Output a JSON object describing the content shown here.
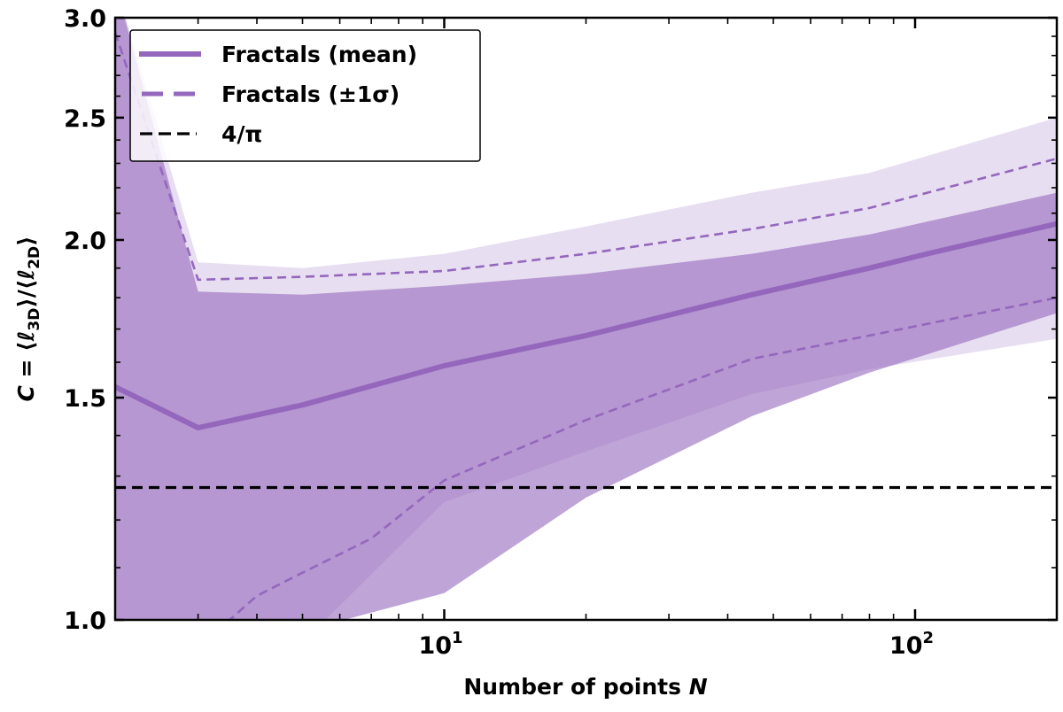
{
  "chart_data": {
    "type": "line",
    "title": "",
    "xlabel": "Number of points N",
    "ylabel": "C = ⟨ℓ3D⟩/⟨ℓ2D⟩",
    "xscale": "log",
    "yscale": "log",
    "xlim": [
      2,
      200
    ],
    "ylim": [
      1.0,
      3.0
    ],
    "grid": false,
    "legend_position": "upper left",
    "x_ticks": [
      {
        "value": 10,
        "label_base": "10",
        "label_exp": "1"
      },
      {
        "value": 100,
        "label_base": "10",
        "label_exp": "2"
      }
    ],
    "y_ticks": [
      {
        "value": 1.0,
        "label": "1.0"
      },
      {
        "value": 1.5,
        "label": "1.5"
      },
      {
        "value": 2.0,
        "label": "2.0"
      },
      {
        "value": 2.5,
        "label": "2.5"
      },
      {
        "value": 3.0,
        "label": "3.0"
      }
    ],
    "series": [
      {
        "name": "Fractals (mean)",
        "style": "solid",
        "color": "#9467bd",
        "x": [
          2,
          3,
          5,
          10,
          20,
          45,
          80,
          106,
          200
        ],
        "values": [
          1.53,
          1.42,
          1.48,
          1.59,
          1.68,
          1.81,
          1.9,
          1.95,
          2.06
        ]
      },
      {
        "name": "Fractals (±1σ)",
        "bound": "upper",
        "style": "dashed",
        "color": "#9467bd",
        "x": [
          2,
          3,
          5,
          10,
          20,
          45,
          80,
          200
        ],
        "values": [
          2.92,
          1.86,
          1.87,
          1.89,
          1.95,
          2.04,
          2.12,
          2.32
        ]
      },
      {
        "name": "Fractals (±1σ)",
        "bound": "lower",
        "style": "dashed",
        "color": "#9467bd",
        "x": [
          2,
          3,
          4,
          5,
          7,
          10,
          20,
          45,
          80,
          200
        ],
        "values": [
          0.85,
          0.95,
          1.045,
          1.09,
          1.16,
          1.29,
          1.44,
          1.61,
          1.68,
          1.8
        ]
      },
      {
        "name": "4/π",
        "style": "dashed",
        "color": "#000000",
        "x": [
          2,
          200
        ],
        "values": [
          1.2732,
          1.2732
        ]
      }
    ],
    "bands": [
      {
        "name": "individual fractal envelope (dense)",
        "color": "#9467bd",
        "opacity": 0.6,
        "x": [
          2,
          3,
          5,
          10,
          20,
          45,
          80,
          200
        ],
        "upper": [
          3.2,
          1.82,
          1.81,
          1.84,
          1.88,
          1.95,
          2.02,
          2.18
        ],
        "lower": [
          0.9,
          0.9,
          0.98,
          1.05,
          1.25,
          1.45,
          1.57,
          1.75
        ]
      },
      {
        "name": "individual fractal envelope (outer)",
        "color": "#9467bd",
        "opacity": 0.22,
        "x": [
          2,
          3,
          5,
          10,
          20,
          45,
          80,
          200
        ],
        "upper": [
          3.2,
          1.92,
          1.9,
          1.95,
          2.05,
          2.18,
          2.26,
          2.5
        ],
        "lower": [
          0.9,
          0.9,
          0.96,
          1.24,
          1.36,
          1.51,
          1.58,
          1.67
        ]
      }
    ],
    "legend": [
      {
        "label": "Fractals (mean)",
        "style": "solid",
        "color": "#9467bd"
      },
      {
        "label": "Fractals (±1σ)",
        "style": "dashed",
        "color": "#9467bd"
      },
      {
        "label": "4/π",
        "style": "dashed",
        "color": "#000000"
      }
    ]
  },
  "axes": {
    "xlabel_main": "Number of points ",
    "xlabel_var": "N",
    "ylabel_prefix": "C = ⟨ℓ",
    "ylabel_sub1": "3D",
    "ylabel_mid": "⟩/⟨ℓ",
    "ylabel_sub2": "2D",
    "ylabel_suffix": "⟩"
  },
  "colors": {
    "accent": "#9467bd",
    "fill": "#b99cd6",
    "reference_line": "#000000"
  }
}
